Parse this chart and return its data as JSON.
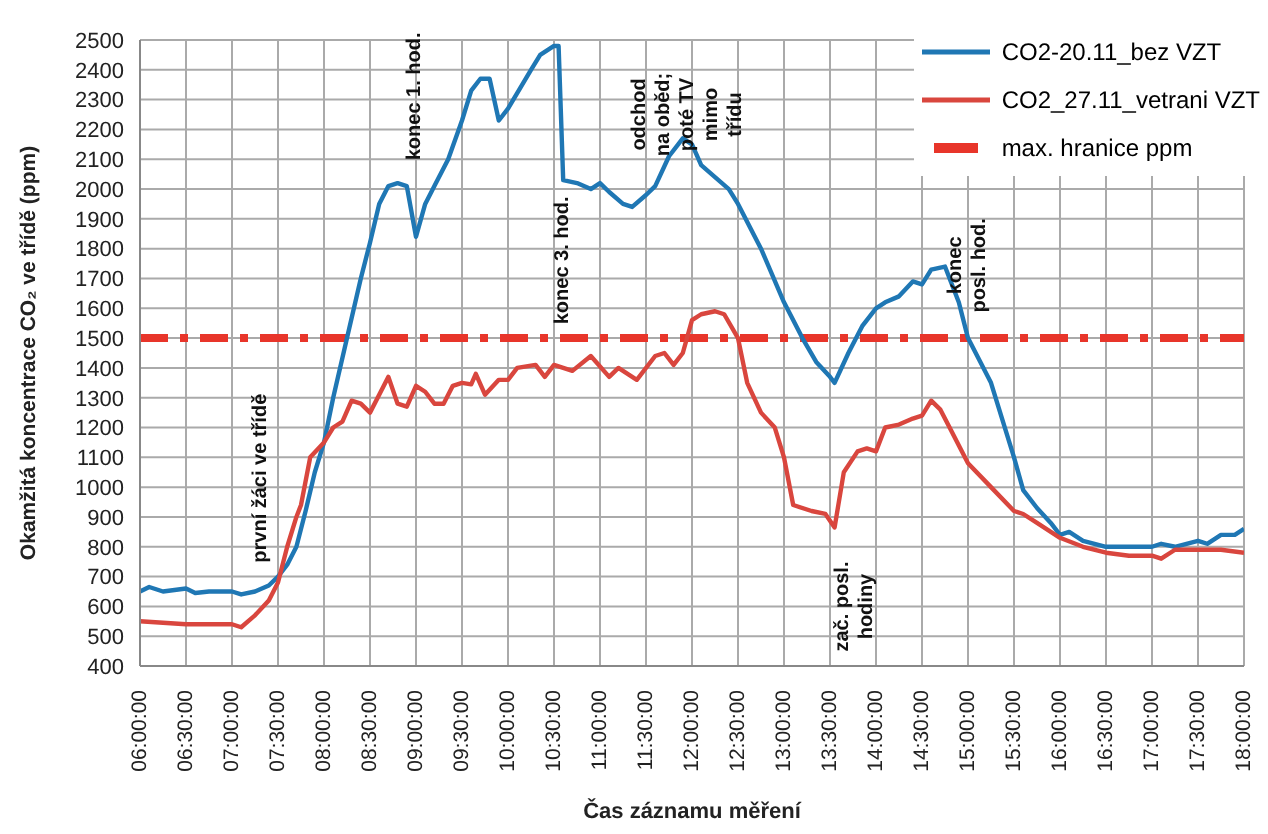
{
  "chart_data": {
    "type": "line",
    "xlabel": "Čas záznamu měření",
    "ylabel": "Okamžitá koncentrace CO₂ ve třídě (ppm)",
    "xlim": [
      6,
      18
    ],
    "ylim": [
      400,
      2500
    ],
    "xticks": [
      {
        "value": 6,
        "label": "06:00:00"
      },
      {
        "value": 6.5,
        "label": "06:30:00"
      },
      {
        "value": 7,
        "label": "07:00:00"
      },
      {
        "value": 7.5,
        "label": "07:30:00"
      },
      {
        "value": 8,
        "label": "08:00:00"
      },
      {
        "value": 8.5,
        "label": "08:30:00"
      },
      {
        "value": 9,
        "label": "09:00:00"
      },
      {
        "value": 9.5,
        "label": "09:30:00"
      },
      {
        "value": 10,
        "label": "10:00:00"
      },
      {
        "value": 10.5,
        "label": "10:30:00"
      },
      {
        "value": 11,
        "label": "11:00:00"
      },
      {
        "value": 11.5,
        "label": "11:30:00"
      },
      {
        "value": 12,
        "label": "12:00:00"
      },
      {
        "value": 12.5,
        "label": "12:30:00"
      },
      {
        "value": 13,
        "label": "13:00:00"
      },
      {
        "value": 13.5,
        "label": "13:30:00"
      },
      {
        "value": 14,
        "label": "14:00:00"
      },
      {
        "value": 14.5,
        "label": "14:30:00"
      },
      {
        "value": 15,
        "label": "15:00:00"
      },
      {
        "value": 15.5,
        "label": "15:30:00"
      },
      {
        "value": 16,
        "label": "16:00:00"
      },
      {
        "value": 16.5,
        "label": "16:30:00"
      },
      {
        "value": 17,
        "label": "17:00:00"
      },
      {
        "value": 17.5,
        "label": "17:30:00"
      },
      {
        "value": 18,
        "label": "18:00:00"
      }
    ],
    "yticks": [
      400,
      500,
      600,
      700,
      800,
      900,
      1000,
      1100,
      1200,
      1300,
      1400,
      1500,
      1600,
      1700,
      1800,
      1900,
      2000,
      2100,
      2200,
      2300,
      2400,
      2500
    ],
    "grid": true,
    "legend": "top right",
    "marker": "none",
    "line_style": "solid",
    "series": [
      {
        "name": "CO2-20.11_bez VZT",
        "color": "#1f77b4",
        "x": [
          6.0,
          6.1,
          6.25,
          6.5,
          6.6,
          6.75,
          7.0,
          7.1,
          7.25,
          7.4,
          7.5,
          7.6,
          7.7,
          7.8,
          7.9,
          8.0,
          8.1,
          8.25,
          8.4,
          8.5,
          8.6,
          8.7,
          8.8,
          8.9,
          9.0,
          9.1,
          9.2,
          9.35,
          9.5,
          9.6,
          9.7,
          9.8,
          9.9,
          10.0,
          10.25,
          10.35,
          10.5,
          10.55,
          10.6,
          10.75,
          10.9,
          11.0,
          11.1,
          11.25,
          11.35,
          11.5,
          11.6,
          11.75,
          11.9,
          12.0,
          12.1,
          12.25,
          12.4,
          12.5,
          12.75,
          13.0,
          13.2,
          13.35,
          13.5,
          13.55,
          13.7,
          13.85,
          14.0,
          14.1,
          14.25,
          14.4,
          14.5,
          14.6,
          14.75,
          14.8,
          14.9,
          15.0,
          15.25,
          15.5,
          15.6,
          15.75,
          15.9,
          16.0,
          16.1,
          16.25,
          16.5,
          16.75,
          17.0,
          17.1,
          17.25,
          17.5,
          17.6,
          17.75,
          17.9,
          18.0
        ],
        "values": [
          650,
          665,
          650,
          660,
          645,
          650,
          650,
          640,
          650,
          670,
          700,
          740,
          800,
          920,
          1050,
          1150,
          1300,
          1500,
          1700,
          1820,
          1950,
          2010,
          2020,
          2010,
          1840,
          1950,
          2010,
          2100,
          2230,
          2330,
          2370,
          2370,
          2230,
          2270,
          2400,
          2450,
          2480,
          2480,
          2030,
          2020,
          2000,
          2020,
          1990,
          1950,
          1940,
          1980,
          2010,
          2110,
          2170,
          2150,
          2080,
          2040,
          2000,
          1950,
          1800,
          1620,
          1500,
          1420,
          1370,
          1350,
          1450,
          1540,
          1600,
          1620,
          1640,
          1690,
          1680,
          1730,
          1740,
          1700,
          1620,
          1500,
          1350,
          1100,
          990,
          930,
          880,
          840,
          850,
          820,
          800,
          800,
          800,
          810,
          800,
          820,
          810,
          840,
          840,
          860
        ]
      },
      {
        "name": "CO2_27.11_vetrani VZT",
        "color": "#d9463e",
        "x": [
          6.0,
          6.25,
          6.5,
          6.75,
          7.0,
          7.1,
          7.25,
          7.4,
          7.5,
          7.6,
          7.7,
          7.75,
          7.85,
          8.0,
          8.1,
          8.2,
          8.3,
          8.4,
          8.5,
          8.6,
          8.7,
          8.8,
          8.9,
          9.0,
          9.1,
          9.2,
          9.3,
          9.4,
          9.5,
          9.6,
          9.65,
          9.75,
          9.9,
          10.0,
          10.1,
          10.3,
          10.4,
          10.5,
          10.7,
          10.9,
          11.1,
          11.2,
          11.4,
          11.6,
          11.7,
          11.8,
          11.9,
          12.0,
          12.1,
          12.25,
          12.35,
          12.5,
          12.6,
          12.75,
          12.9,
          13.0,
          13.1,
          13.3,
          13.45,
          13.55,
          13.65,
          13.8,
          13.9,
          14.0,
          14.1,
          14.25,
          14.4,
          14.5,
          14.6,
          14.7,
          14.8,
          15.0,
          15.25,
          15.5,
          15.6,
          15.75,
          16.0,
          16.25,
          16.5,
          16.75,
          17.0,
          17.1,
          17.25,
          17.5,
          17.75,
          18.0
        ],
        "values": [
          550,
          545,
          540,
          540,
          540,
          530,
          570,
          620,
          680,
          800,
          900,
          940,
          1100,
          1150,
          1200,
          1220,
          1290,
          1280,
          1250,
          1310,
          1370,
          1280,
          1270,
          1340,
          1320,
          1280,
          1280,
          1340,
          1350,
          1345,
          1380,
          1310,
          1360,
          1360,
          1400,
          1410,
          1370,
          1410,
          1390,
          1440,
          1370,
          1400,
          1360,
          1440,
          1450,
          1410,
          1450,
          1560,
          1580,
          1590,
          1580,
          1500,
          1350,
          1250,
          1200,
          1100,
          940,
          920,
          910,
          865,
          1050,
          1120,
          1130,
          1120,
          1200,
          1210,
          1230,
          1240,
          1290,
          1260,
          1200,
          1080,
          1000,
          920,
          910,
          880,
          830,
          800,
          780,
          770,
          770,
          760,
          790,
          790,
          790,
          780
        ]
      }
    ],
    "ref_lines": [
      {
        "axis": "y",
        "value": 1500,
        "label": "max. hranice ppm",
        "color": "#e8352a",
        "line_style": "dashed"
      }
    ],
    "annotations": [
      "první žáci ve třídě",
      "konec 1. hod.",
      "konec 3. hod.",
      "odchod\nna oběd;\npoté TV\nmimo\ntřídu",
      "konec\nposl. hod.",
      "zač. posl.\nhodiny"
    ]
  }
}
